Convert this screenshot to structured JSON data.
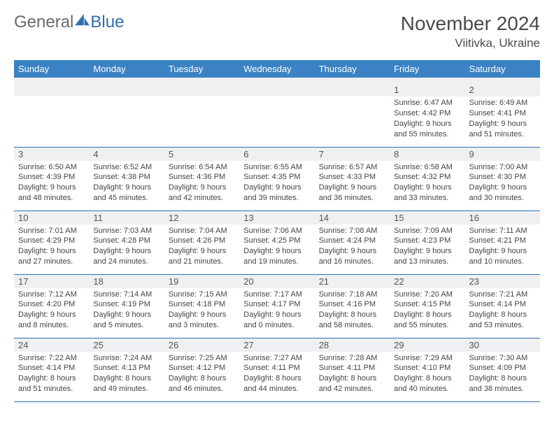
{
  "brand": {
    "part1": "General",
    "part2": "Blue"
  },
  "title": "November 2024",
  "location": "Viitivka, Ukraine",
  "day_headers": [
    "Sunday",
    "Monday",
    "Tuesday",
    "Wednesday",
    "Thursday",
    "Friday",
    "Saturday"
  ],
  "colors": {
    "header_bg": "#3b82c4",
    "header_text": "#ffffff",
    "daynum_bg": "#eef0f2",
    "cell_border": "#2f6fb0",
    "body_text": "#444444",
    "title_text": "#4a4a4a",
    "brand_gray": "#6a6a6a",
    "brand_blue": "#2f6fb0"
  },
  "weeks": [
    [
      {
        "n": "",
        "sr": "",
        "ss": "",
        "dl": ""
      },
      {
        "n": "",
        "sr": "",
        "ss": "",
        "dl": ""
      },
      {
        "n": "",
        "sr": "",
        "ss": "",
        "dl": ""
      },
      {
        "n": "",
        "sr": "",
        "ss": "",
        "dl": ""
      },
      {
        "n": "",
        "sr": "",
        "ss": "",
        "dl": ""
      },
      {
        "n": "1",
        "sr": "Sunrise: 6:47 AM",
        "ss": "Sunset: 4:42 PM",
        "dl": "Daylight: 9 hours and 55 minutes."
      },
      {
        "n": "2",
        "sr": "Sunrise: 6:49 AM",
        "ss": "Sunset: 4:41 PM",
        "dl": "Daylight: 9 hours and 51 minutes."
      }
    ],
    [
      {
        "n": "3",
        "sr": "Sunrise: 6:50 AM",
        "ss": "Sunset: 4:39 PM",
        "dl": "Daylight: 9 hours and 48 minutes."
      },
      {
        "n": "4",
        "sr": "Sunrise: 6:52 AM",
        "ss": "Sunset: 4:38 PM",
        "dl": "Daylight: 9 hours and 45 minutes."
      },
      {
        "n": "5",
        "sr": "Sunrise: 6:54 AM",
        "ss": "Sunset: 4:36 PM",
        "dl": "Daylight: 9 hours and 42 minutes."
      },
      {
        "n": "6",
        "sr": "Sunrise: 6:55 AM",
        "ss": "Sunset: 4:35 PM",
        "dl": "Daylight: 9 hours and 39 minutes."
      },
      {
        "n": "7",
        "sr": "Sunrise: 6:57 AM",
        "ss": "Sunset: 4:33 PM",
        "dl": "Daylight: 9 hours and 36 minutes."
      },
      {
        "n": "8",
        "sr": "Sunrise: 6:58 AM",
        "ss": "Sunset: 4:32 PM",
        "dl": "Daylight: 9 hours and 33 minutes."
      },
      {
        "n": "9",
        "sr": "Sunrise: 7:00 AM",
        "ss": "Sunset: 4:30 PM",
        "dl": "Daylight: 9 hours and 30 minutes."
      }
    ],
    [
      {
        "n": "10",
        "sr": "Sunrise: 7:01 AM",
        "ss": "Sunset: 4:29 PM",
        "dl": "Daylight: 9 hours and 27 minutes."
      },
      {
        "n": "11",
        "sr": "Sunrise: 7:03 AM",
        "ss": "Sunset: 4:28 PM",
        "dl": "Daylight: 9 hours and 24 minutes."
      },
      {
        "n": "12",
        "sr": "Sunrise: 7:04 AM",
        "ss": "Sunset: 4:26 PM",
        "dl": "Daylight: 9 hours and 21 minutes."
      },
      {
        "n": "13",
        "sr": "Sunrise: 7:06 AM",
        "ss": "Sunset: 4:25 PM",
        "dl": "Daylight: 9 hours and 19 minutes."
      },
      {
        "n": "14",
        "sr": "Sunrise: 7:08 AM",
        "ss": "Sunset: 4:24 PM",
        "dl": "Daylight: 9 hours and 16 minutes."
      },
      {
        "n": "15",
        "sr": "Sunrise: 7:09 AM",
        "ss": "Sunset: 4:23 PM",
        "dl": "Daylight: 9 hours and 13 minutes."
      },
      {
        "n": "16",
        "sr": "Sunrise: 7:11 AM",
        "ss": "Sunset: 4:21 PM",
        "dl": "Daylight: 9 hours and 10 minutes."
      }
    ],
    [
      {
        "n": "17",
        "sr": "Sunrise: 7:12 AM",
        "ss": "Sunset: 4:20 PM",
        "dl": "Daylight: 9 hours and 8 minutes."
      },
      {
        "n": "18",
        "sr": "Sunrise: 7:14 AM",
        "ss": "Sunset: 4:19 PM",
        "dl": "Daylight: 9 hours and 5 minutes."
      },
      {
        "n": "19",
        "sr": "Sunrise: 7:15 AM",
        "ss": "Sunset: 4:18 PM",
        "dl": "Daylight: 9 hours and 3 minutes."
      },
      {
        "n": "20",
        "sr": "Sunrise: 7:17 AM",
        "ss": "Sunset: 4:17 PM",
        "dl": "Daylight: 9 hours and 0 minutes."
      },
      {
        "n": "21",
        "sr": "Sunrise: 7:18 AM",
        "ss": "Sunset: 4:16 PM",
        "dl": "Daylight: 8 hours and 58 minutes."
      },
      {
        "n": "22",
        "sr": "Sunrise: 7:20 AM",
        "ss": "Sunset: 4:15 PM",
        "dl": "Daylight: 8 hours and 55 minutes."
      },
      {
        "n": "23",
        "sr": "Sunrise: 7:21 AM",
        "ss": "Sunset: 4:14 PM",
        "dl": "Daylight: 8 hours and 53 minutes."
      }
    ],
    [
      {
        "n": "24",
        "sr": "Sunrise: 7:22 AM",
        "ss": "Sunset: 4:14 PM",
        "dl": "Daylight: 8 hours and 51 minutes."
      },
      {
        "n": "25",
        "sr": "Sunrise: 7:24 AM",
        "ss": "Sunset: 4:13 PM",
        "dl": "Daylight: 8 hours and 49 minutes."
      },
      {
        "n": "26",
        "sr": "Sunrise: 7:25 AM",
        "ss": "Sunset: 4:12 PM",
        "dl": "Daylight: 8 hours and 46 minutes."
      },
      {
        "n": "27",
        "sr": "Sunrise: 7:27 AM",
        "ss": "Sunset: 4:11 PM",
        "dl": "Daylight: 8 hours and 44 minutes."
      },
      {
        "n": "28",
        "sr": "Sunrise: 7:28 AM",
        "ss": "Sunset: 4:11 PM",
        "dl": "Daylight: 8 hours and 42 minutes."
      },
      {
        "n": "29",
        "sr": "Sunrise: 7:29 AM",
        "ss": "Sunset: 4:10 PM",
        "dl": "Daylight: 8 hours and 40 minutes."
      },
      {
        "n": "30",
        "sr": "Sunrise: 7:30 AM",
        "ss": "Sunset: 4:09 PM",
        "dl": "Daylight: 8 hours and 38 minutes."
      }
    ]
  ]
}
